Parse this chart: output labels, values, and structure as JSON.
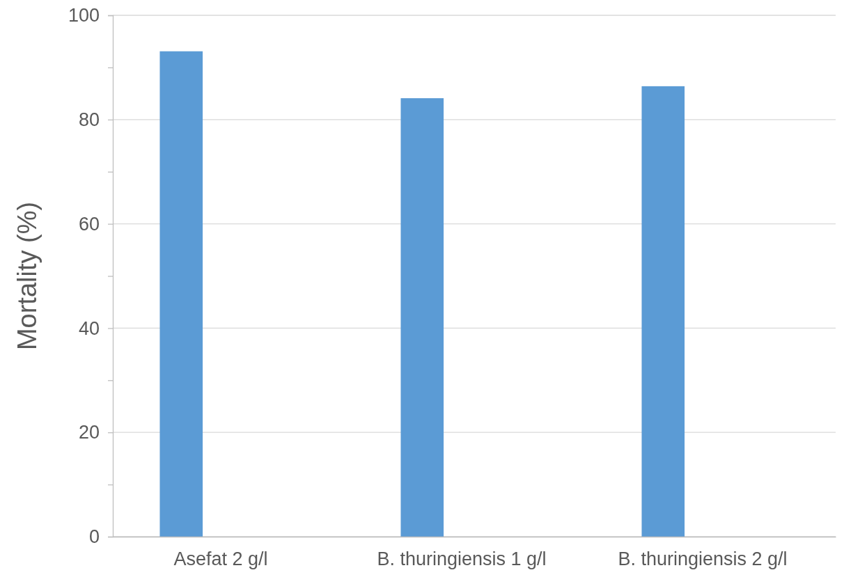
{
  "chart_data": {
    "type": "bar",
    "ylabel": "Mortality (%)",
    "categories": [
      "Asefat 2 g/l",
      "B. thuringiensis 1 g/l",
      "B. thuringiensis 2 g/l"
    ],
    "values": [
      93.1,
      84.1,
      86.4
    ],
    "color": "#5b9bd5",
    "ylim": [
      0,
      100
    ],
    "yticks": [
      0,
      {
        "value": 10,
        "label": null
      },
      20,
      {
        "value": 30,
        "label": null
      },
      40,
      {
        "value": 50,
        "label": null
      },
      60,
      {
        "value": 70,
        "label": null
      },
      80,
      {
        "value": 90,
        "label": null
      },
      100
    ],
    "grid": "y"
  }
}
